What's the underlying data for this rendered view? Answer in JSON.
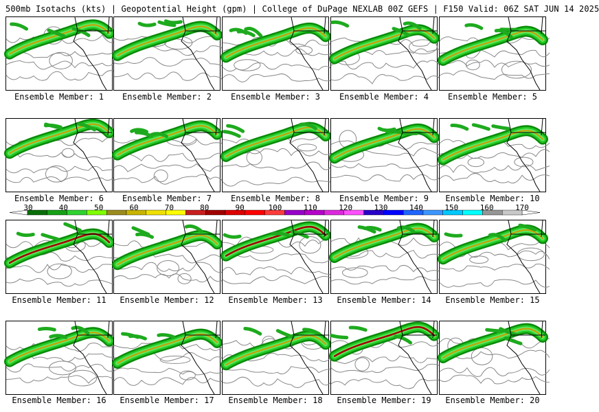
{
  "title": "500mb Isotachs (kts) | Geopotential Height (gpm) | College of DuPage NEXLAB   00Z GEFS | F150 Valid: 06Z SAT JUN 14 2025",
  "panels": [
    {
      "caption": "Ensemble Member: 1"
    },
    {
      "caption": "Ensemble Member: 2"
    },
    {
      "caption": "Ensemble Member: 3"
    },
    {
      "caption": "Ensemble Member: 4"
    },
    {
      "caption": "Ensemble Member: 5"
    },
    {
      "caption": "Ensemble Member: 6"
    },
    {
      "caption": "Ensemble Member: 7"
    },
    {
      "caption": "Ensemble Member: 8"
    },
    {
      "caption": "Ensemble Member: 9"
    },
    {
      "caption": "Ensemble Member: 10"
    },
    {
      "caption": "Ensemble Member: 11"
    },
    {
      "caption": "Ensemble Member: 12"
    },
    {
      "caption": "Ensemble Member: 13"
    },
    {
      "caption": "Ensemble Member: 14"
    },
    {
      "caption": "Ensemble Member: 15"
    },
    {
      "caption": "Ensemble Member: 16"
    },
    {
      "caption": "Ensemble Member: 17"
    },
    {
      "caption": "Ensemble Member: 18"
    },
    {
      "caption": "Ensemble Member: 19"
    },
    {
      "caption": "Ensemble Member: 20"
    }
  ],
  "colorbar": {
    "labels": [
      "30",
      "40",
      "50",
      "60",
      "70",
      "80",
      "90",
      "100",
      "110",
      "120",
      "130",
      "140",
      "150",
      "160",
      "170"
    ],
    "colors": [
      "#0a6e0a",
      "#16a016",
      "#2fd22f",
      "#7fff00",
      "#9b8a1e",
      "#c8b400",
      "#f0e000",
      "#ffff00",
      "#c81e1e",
      "#a00000",
      "#dc0000",
      "#ff0000",
      "#ff3c3c",
      "#9600c8",
      "#b400c8",
      "#dc28dc",
      "#ff50ff",
      "#2800c8",
      "#0000ff",
      "#1e64ff",
      "#3c96ff",
      "#00c8ff",
      "#00ffff",
      "#969696",
      "#c8c8c8"
    ]
  }
}
